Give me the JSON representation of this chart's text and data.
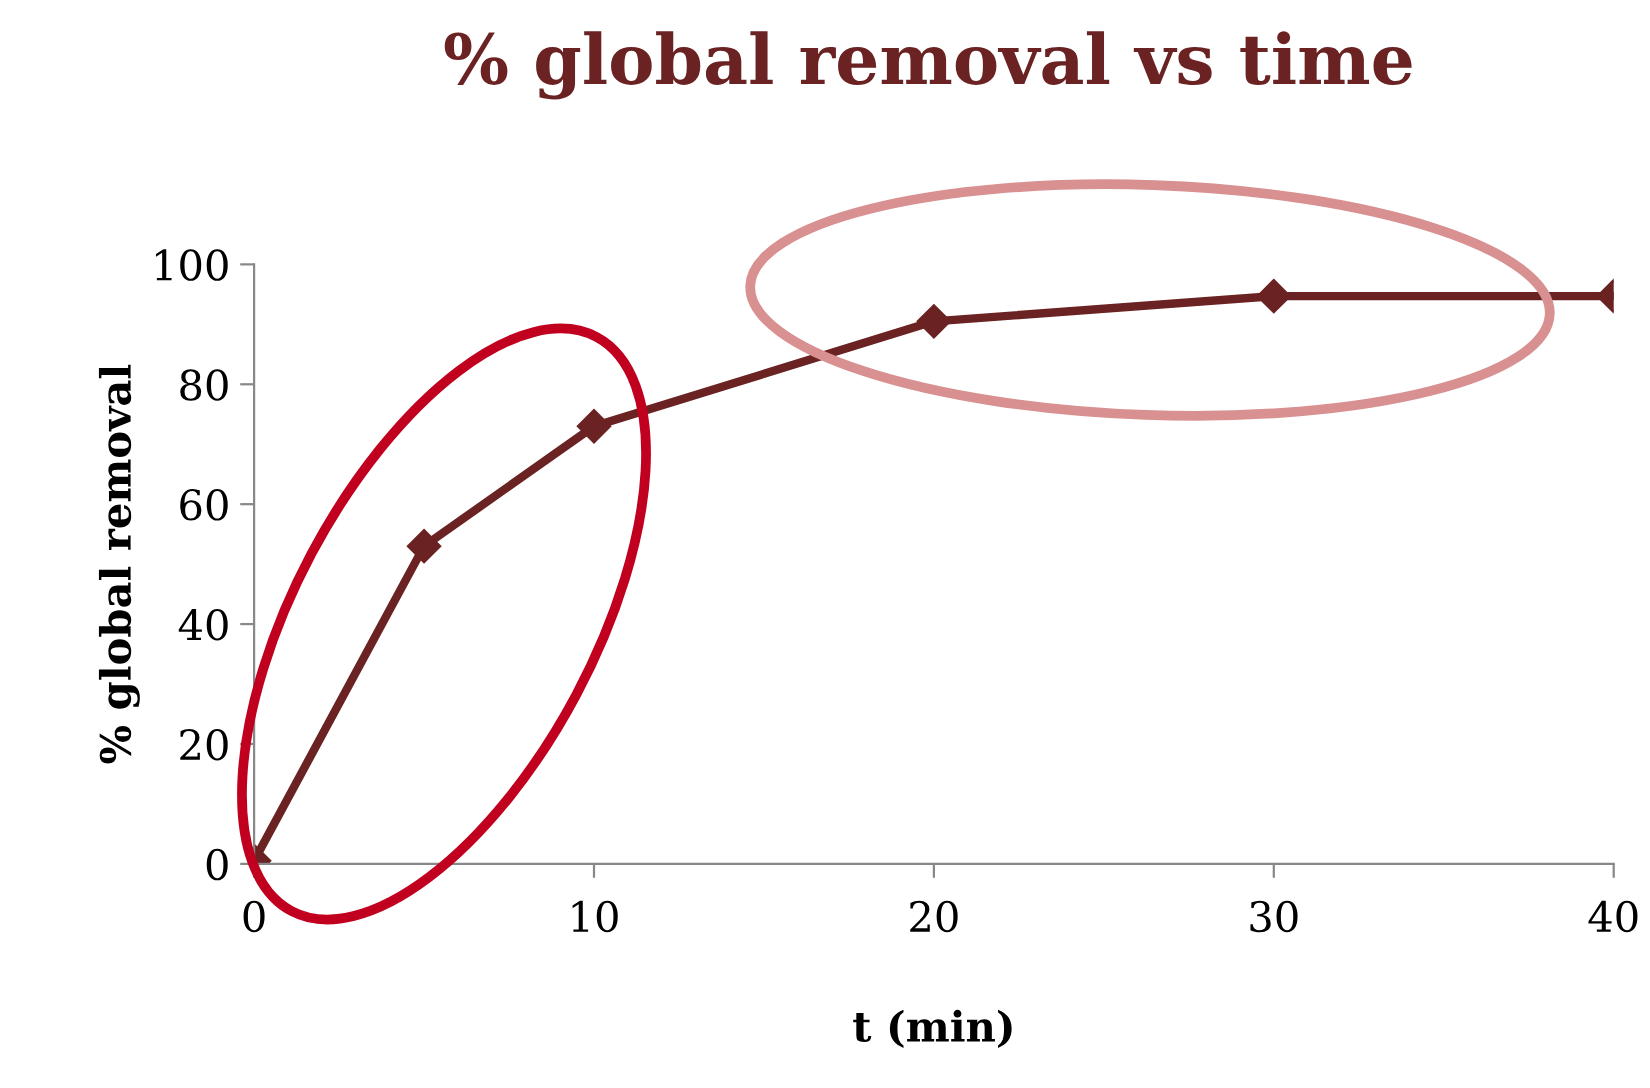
{
  "chart_data": {
    "type": "line",
    "title": "% global removal vs time",
    "xlabel": "t (min)",
    "ylabel": "% global removal",
    "x": [
      0,
      5,
      10,
      20,
      30,
      40
    ],
    "series": [
      {
        "color": "#6b2222",
        "values": [
          0.5,
          53,
          73,
          90.5,
          94.7,
          94.7
        ]
      }
    ],
    "xlim": [
      0,
      40
    ],
    "xticks": [
      0,
      10,
      20,
      30,
      40
    ],
    "ylim": [
      0,
      100
    ],
    "yticks": [
      0,
      20,
      40,
      60,
      80,
      100
    ],
    "grid": false,
    "legend": false,
    "marker": "diamond",
    "line_style": "solid"
  }
}
